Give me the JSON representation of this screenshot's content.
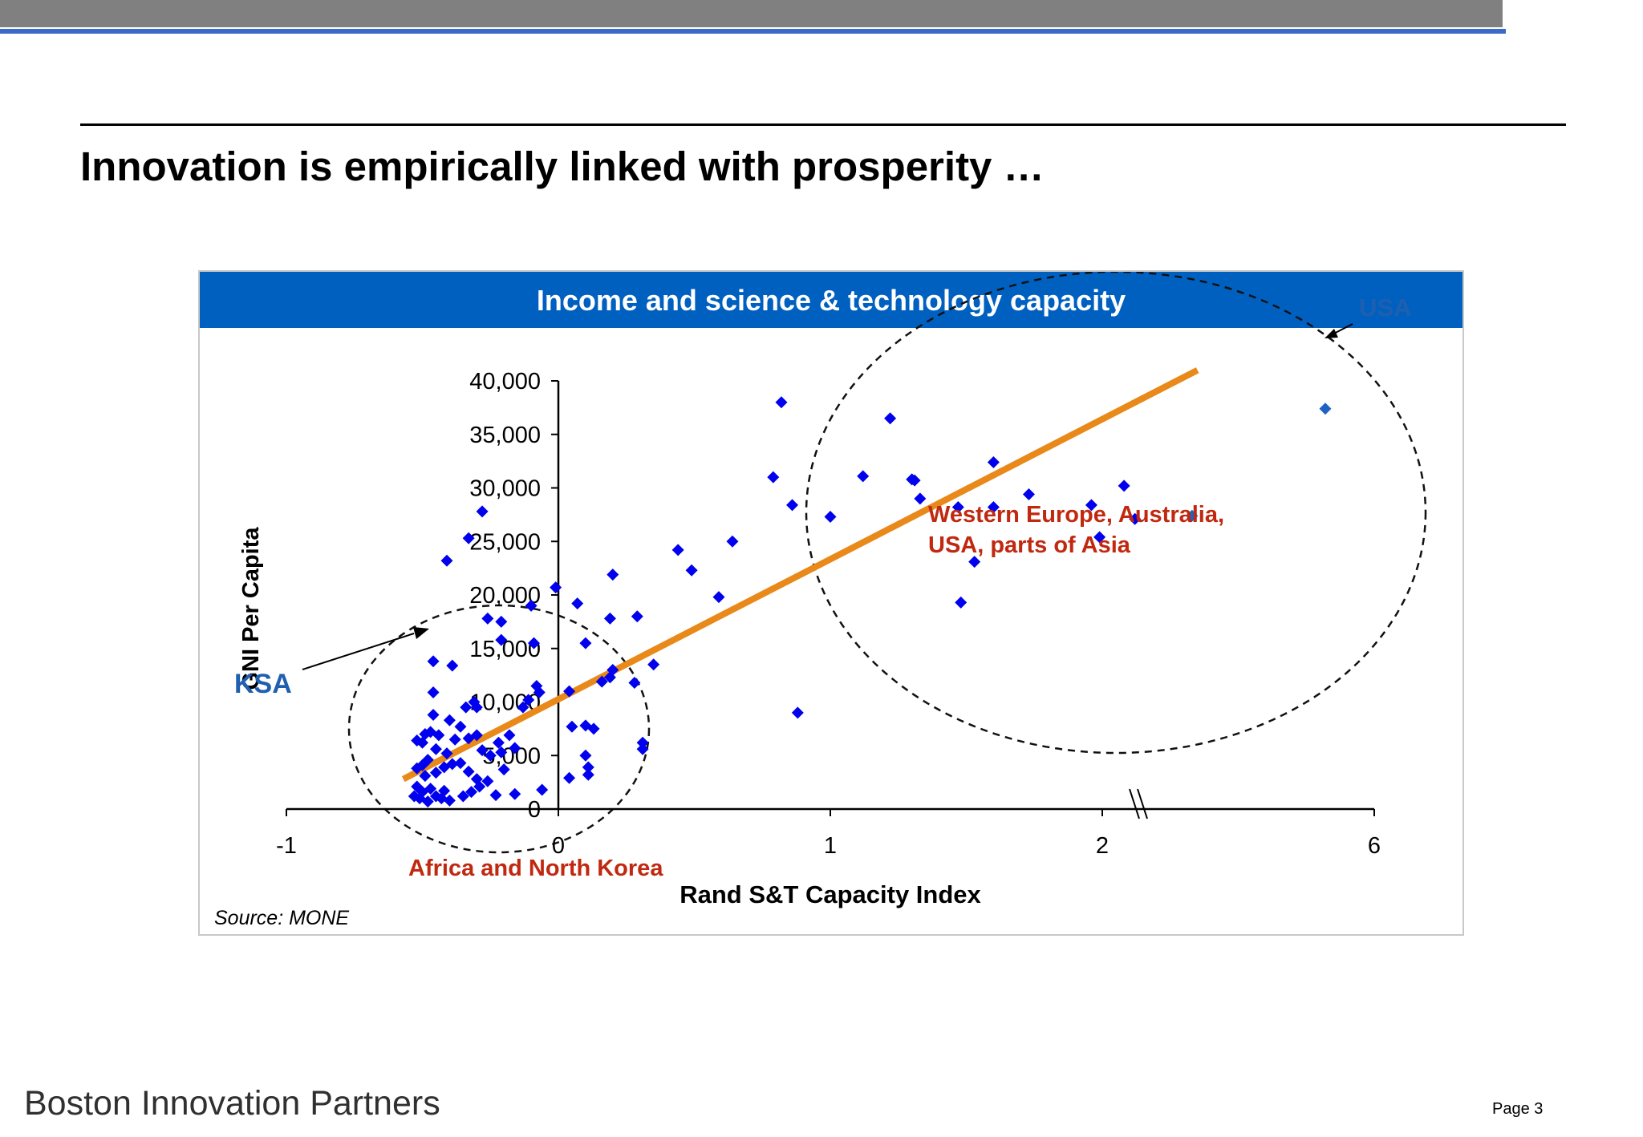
{
  "slide": {
    "title": "Innovation is empirically linked with prosperity …",
    "footer": "Boston Innovation Partners",
    "page": "Page  3"
  },
  "chart_data": {
    "type": "scatter",
    "title": "Income and science & technology capacity",
    "xlabel": "Rand S&T Capacity Index",
    "ylabel": "GNI Per Capita",
    "source": "Source:  MONE",
    "xlim": [
      -1,
      3
    ],
    "ylim": [
      0,
      40000
    ],
    "x_tick_labels": [
      "-1",
      "0",
      "1",
      "2",
      "6"
    ],
    "y_tick_labels": [
      "0",
      "5,000",
      "10,000",
      "15,000",
      "20,000",
      "25,000",
      "30,000",
      "35,000",
      "40,000"
    ],
    "grid": false,
    "axis_break": true,
    "colors": {
      "points": "#0000EE",
      "trend": "#E8891A",
      "header": "#0060C0",
      "group_label": "#C0280F",
      "callout": "#1F5FAF"
    },
    "trendline": [
      [
        -0.57,
        2800
      ],
      [
        2.35,
        41000
      ]
    ],
    "annotations": {
      "usa": "USA",
      "ksa": "KSA",
      "high_group": [
        "Western Europe, Australia,",
        "USA, parts of Asia"
      ],
      "low_group": "Africa and North Korea"
    },
    "series": [
      {
        "points": [
          [
            -0.41,
            23200
          ],
          [
            -0.33,
            25300
          ],
          [
            -0.28,
            27800
          ],
          [
            -0.46,
            13800
          ],
          [
            -0.39,
            13400
          ],
          [
            -0.26,
            17800
          ],
          [
            -0.21,
            17500
          ],
          [
            -0.21,
            15800
          ],
          [
            -0.1,
            19000
          ],
          [
            -0.09,
            15500
          ],
          [
            -0.08,
            11500
          ],
          [
            -0.07,
            10900
          ],
          [
            -0.46,
            10900
          ],
          [
            -0.46,
            8800
          ],
          [
            -0.49,
            7000
          ],
          [
            -0.5,
            6200
          ],
          [
            -0.52,
            6400
          ],
          [
            -0.47,
            7200
          ],
          [
            -0.44,
            6900
          ],
          [
            -0.4,
            8300
          ],
          [
            -0.36,
            7700
          ],
          [
            -0.34,
            9500
          ],
          [
            -0.31,
            10000
          ],
          [
            -0.3,
            9500
          ],
          [
            -0.33,
            6600
          ],
          [
            -0.3,
            6900
          ],
          [
            -0.28,
            5500
          ],
          [
            -0.25,
            5000
          ],
          [
            -0.22,
            6200
          ],
          [
            -0.21,
            5300
          ],
          [
            -0.18,
            6900
          ],
          [
            -0.16,
            5700
          ],
          [
            -0.13,
            9500
          ],
          [
            -0.11,
            10200
          ],
          [
            -0.38,
            6500
          ],
          [
            -0.41,
            5200
          ],
          [
            -0.45,
            5600
          ],
          [
            -0.48,
            4600
          ],
          [
            -0.5,
            4100
          ],
          [
            -0.52,
            3800
          ],
          [
            -0.49,
            3100
          ],
          [
            -0.45,
            3400
          ],
          [
            -0.42,
            3900
          ],
          [
            -0.39,
            4200
          ],
          [
            -0.36,
            4300
          ],
          [
            -0.33,
            3500
          ],
          [
            -0.3,
            2800
          ],
          [
            -0.29,
            2100
          ],
          [
            -0.26,
            2600
          ],
          [
            -0.23,
            1300
          ],
          [
            -0.2,
            3700
          ],
          [
            -0.16,
            1400
          ],
          [
            -0.52,
            2100
          ],
          [
            -0.5,
            1600
          ],
          [
            -0.47,
            1900
          ],
          [
            -0.45,
            1200
          ],
          [
            -0.42,
            1700
          ],
          [
            -0.4,
            800
          ],
          [
            -0.43,
            1000
          ],
          [
            -0.48,
            700
          ],
          [
            -0.51,
            1000
          ],
          [
            -0.53,
            1200
          ],
          [
            -0.35,
            1200
          ],
          [
            -0.32,
            1600
          ],
          [
            -0.06,
            1800
          ],
          [
            -0.01,
            20700
          ],
          [
            0.07,
            19200
          ],
          [
            0.1,
            15500
          ],
          [
            0.2,
            21900
          ],
          [
            0.19,
            17800
          ],
          [
            0.29,
            18000
          ],
          [
            0.35,
            13500
          ],
          [
            0.28,
            11800
          ],
          [
            0.19,
            12300
          ],
          [
            0.16,
            11900
          ],
          [
            0.2,
            13000
          ],
          [
            0.04,
            11000
          ],
          [
            0.05,
            7700
          ],
          [
            0.1,
            7800
          ],
          [
            0.13,
            7500
          ],
          [
            0.1,
            5000
          ],
          [
            0.11,
            3900
          ],
          [
            0.11,
            3200
          ],
          [
            0.04,
            2900
          ],
          [
            0.31,
            6200
          ],
          [
            0.31,
            5600
          ],
          [
            0.44,
            24200
          ],
          [
            0.49,
            22300
          ],
          [
            0.59,
            19800
          ],
          [
            0.64,
            25000
          ],
          [
            0.79,
            31000
          ],
          [
            0.82,
            38000
          ],
          [
            0.86,
            28400
          ],
          [
            0.88,
            9000
          ],
          [
            1.0,
            27300
          ],
          [
            1.12,
            31100
          ],
          [
            1.22,
            36500
          ],
          [
            1.3,
            30800
          ],
          [
            1.31,
            30700
          ],
          [
            1.33,
            29000
          ],
          [
            1.47,
            28200
          ],
          [
            1.48,
            19300
          ],
          [
            1.53,
            23100
          ],
          [
            1.6,
            28200
          ],
          [
            1.6,
            32400
          ],
          [
            1.73,
            29400
          ],
          [
            1.96,
            28400
          ],
          [
            1.99,
            25400
          ],
          [
            2.08,
            30200
          ],
          [
            2.12,
            27100
          ],
          [
            2.33,
            27400
          ],
          [
            2.82,
            37400
          ]
        ]
      }
    ]
  }
}
